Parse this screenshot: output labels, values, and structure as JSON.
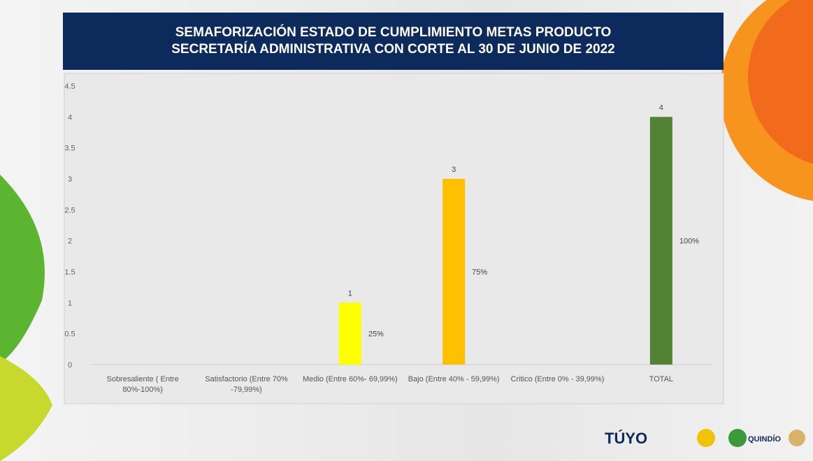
{
  "chart_data": {
    "type": "bar",
    "title": "SEMAFORIZACIÓN  ESTADO DE CUMPLIMIENTO METAS PRODUCTO SECRETARÍA ADMINISTRATIVA CON CORTE AL  30 DE JUNIO DE 2022",
    "categories": [
      "Sobresaliente ( Entre 80%-100%)",
      "Satisfactorio (Entre 70% -79,99%)",
      "Medio (Entre 60%- 69,99%)",
      "Bajo (Entre 40% - 59,99%)",
      "Critico (Entre 0% - 39,99%)",
      "TOTAL"
    ],
    "values": [
      null,
      null,
      1,
      3,
      null,
      4
    ],
    "percent_labels": [
      null,
      null,
      "25%",
      "75%",
      null,
      "100%"
    ],
    "colors": [
      null,
      null,
      "#ffff00",
      "#ffc000",
      null,
      "#548235"
    ],
    "ylim": [
      0,
      4.5
    ],
    "yticks": [
      0,
      0.5,
      1,
      1.5,
      2,
      2.5,
      3,
      3.5,
      4,
      4.5
    ],
    "grid": false
  },
  "logos": {
    "tu_yo": "TÚYO",
    "quindio": "QUINDÍO"
  }
}
